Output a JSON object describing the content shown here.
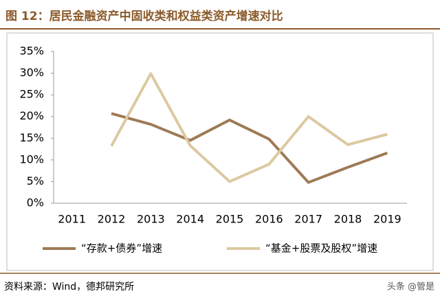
{
  "title": "图 12：居民金融资产中固收类和权益类资产增速对比",
  "source": "资料来源：Wind，德邦研究所",
  "watermark": "头条 @管是",
  "chart_data": {
    "type": "line",
    "categories": [
      "2011",
      "2012",
      "2013",
      "2014",
      "2015",
      "2016",
      "2017",
      "2018",
      "2019"
    ],
    "series": [
      {
        "name": "“存款+债券”增速",
        "color": "#9e7a55",
        "values": [
          null,
          20.7,
          18.2,
          14.5,
          19.2,
          14.8,
          4.8,
          8.3,
          11.6
        ]
      },
      {
        "name": "“基金+股票及股权”增速",
        "color": "#dcc9a0",
        "values": [
          null,
          13.2,
          29.9,
          13.3,
          5.0,
          9.0,
          20.0,
          13.5,
          15.9
        ]
      }
    ],
    "ylim": [
      0,
      35
    ],
    "yticks": [
      {
        "value": 0,
        "label": "0%"
      },
      {
        "value": 5,
        "label": "5%"
      },
      {
        "value": 10,
        "label": "10%"
      },
      {
        "value": 15,
        "label": "15%"
      },
      {
        "value": 20,
        "label": "20%"
      },
      {
        "value": 25,
        "label": "25%"
      },
      {
        "value": 30,
        "label": "30%"
      },
      {
        "value": 35,
        "label": "35%"
      }
    ],
    "grid": false,
    "legend": "bottom"
  }
}
